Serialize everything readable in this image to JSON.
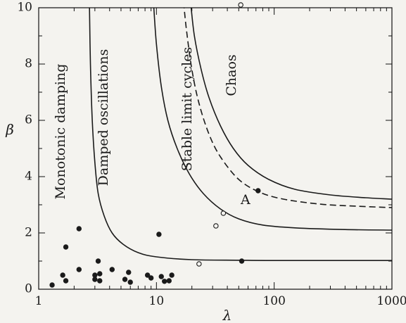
{
  "chart_data": {
    "type": "scatter",
    "xlabel": "λ",
    "ylabel": "β",
    "xscale": "log",
    "xlim": [
      1,
      1000
    ],
    "ylim": [
      0,
      10
    ],
    "xticks": [
      1,
      10,
      100,
      1000
    ],
    "xtick_labels": [
      "1",
      "10",
      "100",
      "1000"
    ],
    "yticks": [
      0,
      2,
      4,
      6,
      8,
      10
    ],
    "ytick_labels": [
      "0",
      "2",
      "4",
      "6",
      "8",
      "10"
    ],
    "grid": false,
    "region_labels": [
      {
        "text": "Monotonic damping",
        "lambda": 1.55,
        "beta": 5.6
      },
      {
        "text": "Damped oscillations",
        "lambda": 3.6,
        "beta": 6.1
      },
      {
        "text": "Stable limit cycles",
        "lambda": 18.5,
        "beta": 6.4
      },
      {
        "text": "Chaos",
        "lambda": 44,
        "beta": 7.6
      }
    ],
    "boundaries": [
      {
        "style": "solid",
        "points": [
          [
            2.7,
            10
          ],
          [
            2.75,
            8
          ],
          [
            2.85,
            6
          ],
          [
            3.0,
            4.5
          ],
          [
            3.2,
            3.4
          ],
          [
            3.6,
            2.6
          ],
          [
            4.2,
            2.0
          ],
          [
            5.2,
            1.6
          ],
          [
            7,
            1.3
          ],
          [
            10,
            1.15
          ],
          [
            20,
            1.05
          ],
          [
            50,
            1.03
          ],
          [
            100,
            1.02
          ],
          [
            1000,
            1.02
          ]
        ]
      },
      {
        "style": "solid",
        "points": [
          [
            9.5,
            10
          ],
          [
            10,
            8.7
          ],
          [
            11,
            7.2
          ],
          [
            12.5,
            6.0
          ],
          [
            15,
            5.0
          ],
          [
            19,
            4.1
          ],
          [
            25,
            3.4
          ],
          [
            35,
            2.85
          ],
          [
            50,
            2.5
          ],
          [
            80,
            2.28
          ],
          [
            150,
            2.18
          ],
          [
            400,
            2.12
          ],
          [
            1000,
            2.1
          ]
        ]
      },
      {
        "style": "dashed",
        "points": [
          [
            17,
            10.2
          ],
          [
            18,
            9.2
          ],
          [
            20,
            7.8
          ],
          [
            23,
            6.6
          ],
          [
            28,
            5.5
          ],
          [
            35,
            4.7
          ],
          [
            50,
            3.9
          ],
          [
            75,
            3.45
          ],
          [
            120,
            3.2
          ],
          [
            250,
            3.02
          ],
          [
            500,
            2.95
          ],
          [
            1000,
            2.9
          ]
        ]
      },
      {
        "style": "solid",
        "points": [
          [
            19.5,
            10.2
          ],
          [
            21,
            9.0
          ],
          [
            24,
            7.8
          ],
          [
            28,
            6.8
          ],
          [
            35,
            5.8
          ],
          [
            45,
            5.0
          ],
          [
            60,
            4.4
          ],
          [
            90,
            3.9
          ],
          [
            150,
            3.55
          ],
          [
            300,
            3.35
          ],
          [
            600,
            3.25
          ],
          [
            1000,
            3.2
          ]
        ]
      }
    ],
    "series": [
      {
        "marker": "filled",
        "points": [
          [
            1.3,
            0.15
          ],
          [
            1.6,
            0.5
          ],
          [
            1.7,
            1.5
          ],
          [
            1.7,
            0.3
          ],
          [
            2.2,
            2.15
          ],
          [
            2.2,
            0.7
          ],
          [
            3.0,
            0.5
          ],
          [
            3.0,
            0.35
          ],
          [
            3.2,
            1.0
          ],
          [
            3.3,
            0.55
          ],
          [
            3.3,
            0.3
          ],
          [
            4.2,
            0.7
          ],
          [
            5.4,
            0.35
          ],
          [
            5.8,
            0.6
          ],
          [
            6.0,
            0.25
          ],
          [
            8.4,
            0.5
          ],
          [
            9.0,
            0.4
          ],
          [
            10.5,
            1.95
          ],
          [
            11,
            0.45
          ],
          [
            11.7,
            0.28
          ],
          [
            12.8,
            0.3
          ],
          [
            13.5,
            0.5
          ],
          [
            53,
            1.0
          ],
          [
            73,
            3.5
          ]
        ]
      },
      {
        "marker": "open",
        "points": [
          [
            52,
            10.1
          ],
          [
            23,
            0.9
          ],
          [
            32,
            2.25
          ],
          [
            37,
            2.7
          ]
        ]
      }
    ],
    "annotations": [
      {
        "text": "A",
        "lambda": 57,
        "beta": 3.15
      }
    ]
  }
}
